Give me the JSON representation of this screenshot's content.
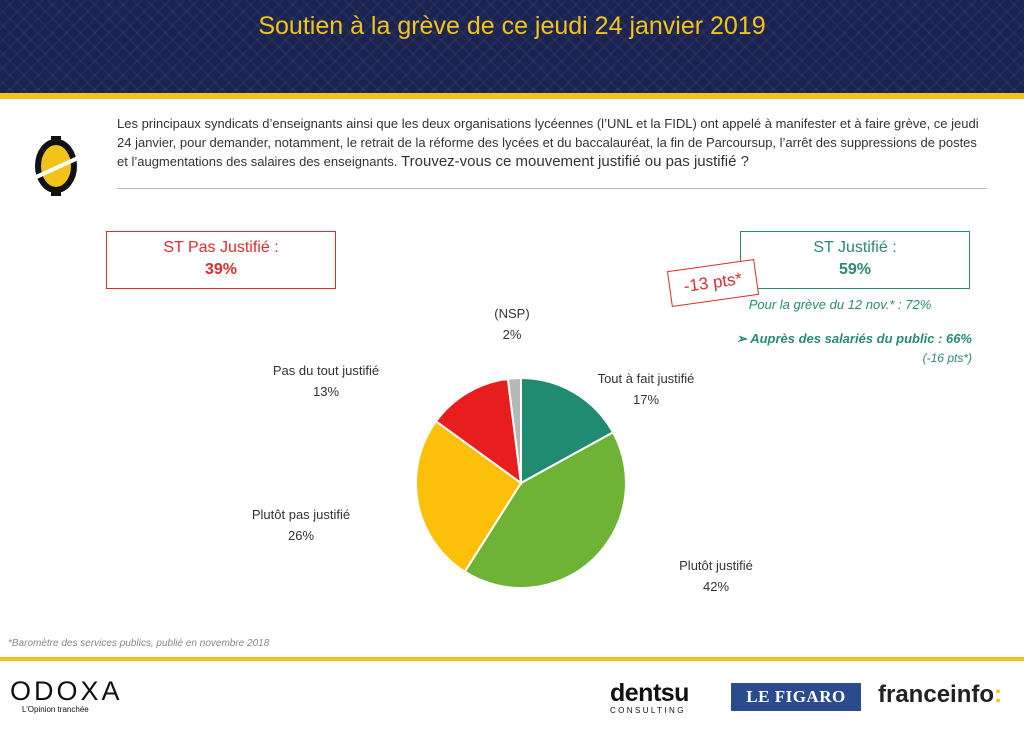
{
  "header": {
    "title": "Soutien à la grève de ce jeudi 24 janvier 2019"
  },
  "intro": {
    "text": "Les principaux syndicats d’enseignants ainsi que les deux organisations lycéennes (l’UNL et la FIDL) ont appelé à manifester et à faire grève, ce jeudi 24 janvier, pour demander, notamment, le retrait de la réforme des lycées et du baccalauréat, la fin de Parcoursup, l’arrêt des suppressions de postes et l’augmentations des salaires des enseignants.",
    "question": "Trouvez-vous ce mouvement justifié ou pas justifié ?"
  },
  "summary": {
    "not_justified_label": "ST Pas Justifié :",
    "not_justified_value": "39%",
    "justified_label": "ST Justifié :",
    "justified_value": "59%",
    "delta": "-13 pts*",
    "previous_note": "Pour la grève du 12 nov.* : 72%",
    "public_note": "➢ Auprès des salariés du public : 66%",
    "public_delta": "(-16 pts*)"
  },
  "chart_data": {
    "type": "pie",
    "slices": [
      {
        "label": "Tout à fait justifié",
        "value": 17,
        "display": "17%",
        "color": "#218b71"
      },
      {
        "label": "Plutôt justifié",
        "value": 42,
        "display": "42%",
        "color": "#6eb335"
      },
      {
        "label": "Plutôt pas justifié",
        "value": 26,
        "display": "26%",
        "color": "#fcbf0a"
      },
      {
        "label": "Pas du tout justifié",
        "value": 13,
        "display": "13%",
        "color": "#e81d1d"
      },
      {
        "label": "(NSP)",
        "value": 2,
        "display": "2%",
        "color": "#b7b7b7"
      }
    ]
  },
  "footnote": "*Baromètre des services publics, publié en novembre 2018",
  "brands": {
    "odoxa_name": "ODOXA",
    "odoxa_tagline": "L’Opinion tranchée",
    "dentsu_name": "dentsu",
    "dentsu_sub": "CONSULTING",
    "figaro": "LE FIGARO",
    "franceinfo": "franceinfo",
    "franceinfo_colon": ":"
  },
  "colors": {
    "navy": "#1b2451",
    "gold": "#f2c318",
    "red": "#e02b2b",
    "green": "#2a8a73"
  }
}
